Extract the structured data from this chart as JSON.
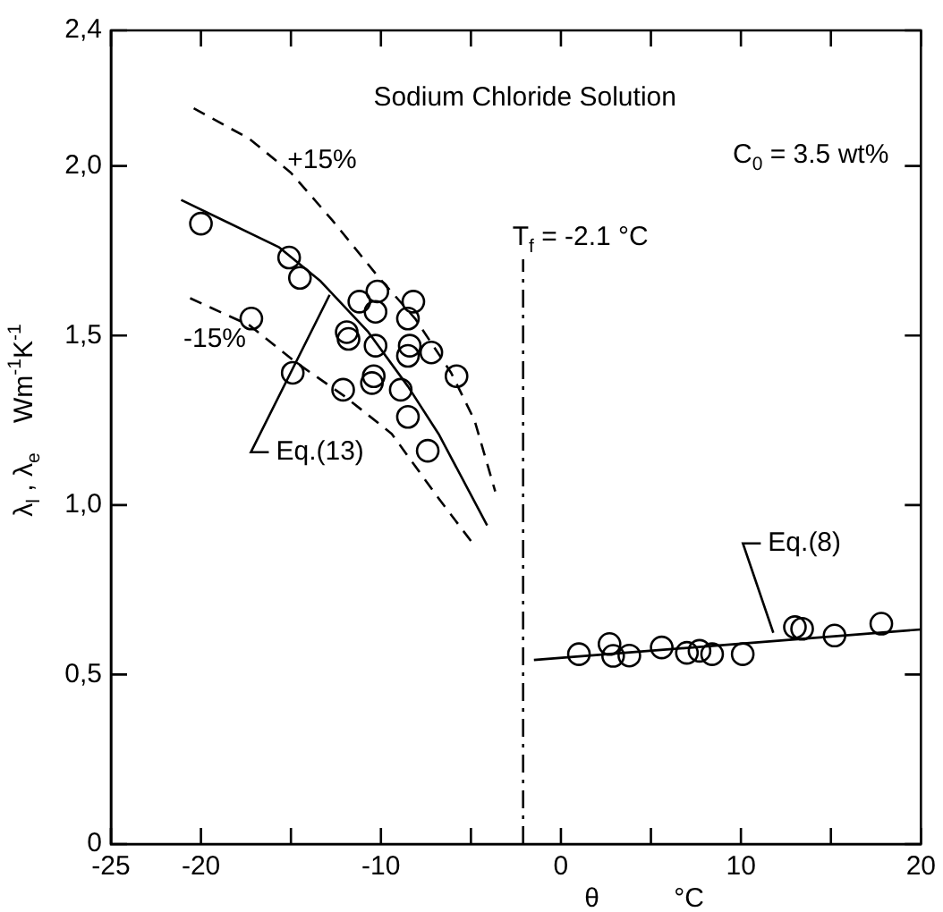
{
  "chart_data": {
    "type": "scatter",
    "title": "Sodium Chloride Solution",
    "xlabel": "θ          °C",
    "ylabel": "λ$_{l}$ , λ$_{e}$    Wm$^{-1}$K$^{-1}$",
    "xlim": [
      -25,
      20
    ],
    "xticks": [
      -25,
      -20,
      {
        "value": -15,
        "label": null
      },
      -10,
      {
        "value": -5,
        "label": null
      },
      0,
      {
        "value": 5,
        "label": null
      },
      10,
      {
        "value": 15,
        "label": null
      },
      20
    ],
    "ylim": [
      0,
      2.4
    ],
    "yticks": [
      0,
      {
        "value": 0.5,
        "label": "0,5"
      },
      {
        "value": 1.0,
        "label": "1,0"
      },
      {
        "value": 1.5,
        "label": "1,5"
      },
      {
        "value": 2.0,
        "label": "2,0"
      },
      {
        "value": 2.4,
        "label": "2,4"
      }
    ],
    "marker": "circle",
    "series": [
      {
        "color": "#000000",
        "x": [
          -20,
          -17.2,
          -15.1,
          -14.5,
          -14.9,
          -11.8,
          -11.9,
          -12.1,
          -11.2,
          -10.2,
          -10.3,
          -10.3,
          -10.4,
          -10.5,
          -8.9,
          -8.5,
          -8.2,
          -8.5,
          -8.4,
          -8.5,
          -7.2,
          -5.8,
          -7.4,
          1.0,
          2.7,
          2.9,
          3.8,
          5.6,
          7.0,
          7.7,
          8.4,
          10.1,
          13.0,
          13.4,
          15.2,
          17.8
        ],
        "values": [
          1.83,
          1.55,
          1.73,
          1.67,
          1.39,
          1.49,
          1.51,
          1.34,
          1.6,
          1.63,
          1.57,
          1.47,
          1.38,
          1.36,
          1.34,
          1.26,
          1.6,
          1.55,
          1.47,
          1.44,
          1.45,
          1.38,
          1.16,
          0.56,
          0.59,
          0.555,
          0.556,
          0.58,
          0.564,
          0.57,
          0.56,
          0.56,
          0.64,
          0.635,
          0.615,
          0.65
        ]
      },
      {
        "type": "line",
        "color": "#000000",
        "marker": "none",
        "line_style": "solid",
        "x": [
          -21.1,
          -15.65,
          -13.35,
          -10.7,
          -8.5,
          -6.8,
          -5.1,
          -4.1
        ],
        "values": [
          1.9,
          1.76,
          1.66,
          1.51,
          1.35,
          1.21,
          1.04,
          0.94
        ]
      },
      {
        "type": "line",
        "color": "#000000",
        "marker": "none",
        "line_style": "dashed",
        "x": [
          -20.4,
          -17.3,
          -15.0,
          -12.7,
          -10.1,
          -8.1,
          -6.1,
          -4.8,
          -3.65
        ],
        "values": [
          2.17,
          2.08,
          1.98,
          1.84,
          1.67,
          1.55,
          1.39,
          1.25,
          1.04
        ]
      },
      {
        "type": "line",
        "color": "#000000",
        "marker": "none",
        "line_style": "dashed",
        "x": [
          -20.6,
          -17.3,
          -14.7,
          -12.0,
          -9.4,
          -6.8,
          -4.8
        ],
        "values": [
          1.61,
          1.53,
          1.42,
          1.32,
          1.21,
          1.02,
          0.88
        ]
      },
      {
        "type": "line",
        "color": "#000000",
        "marker": "none",
        "line_style": "solid",
        "x": [
          -1.5,
          20
        ],
        "values": [
          0.543,
          0.633
        ]
      }
    ],
    "ref_lines": [
      {
        "axis": "x",
        "value": -2.1,
        "label": "T$_{f}$ = -2.1 °C",
        "color": "#000000",
        "line_style": "dashdot"
      }
    ],
    "annotations": [
      "C$_{0}$ = 3.5 wt%",
      "+15%",
      "-15%",
      {
        "text": "Eq.(13)",
        "x": -12.85,
        "y": 1.62
      },
      {
        "text": "Eq.(8)",
        "x": 11.8,
        "y": 0.623
      }
    ]
  }
}
